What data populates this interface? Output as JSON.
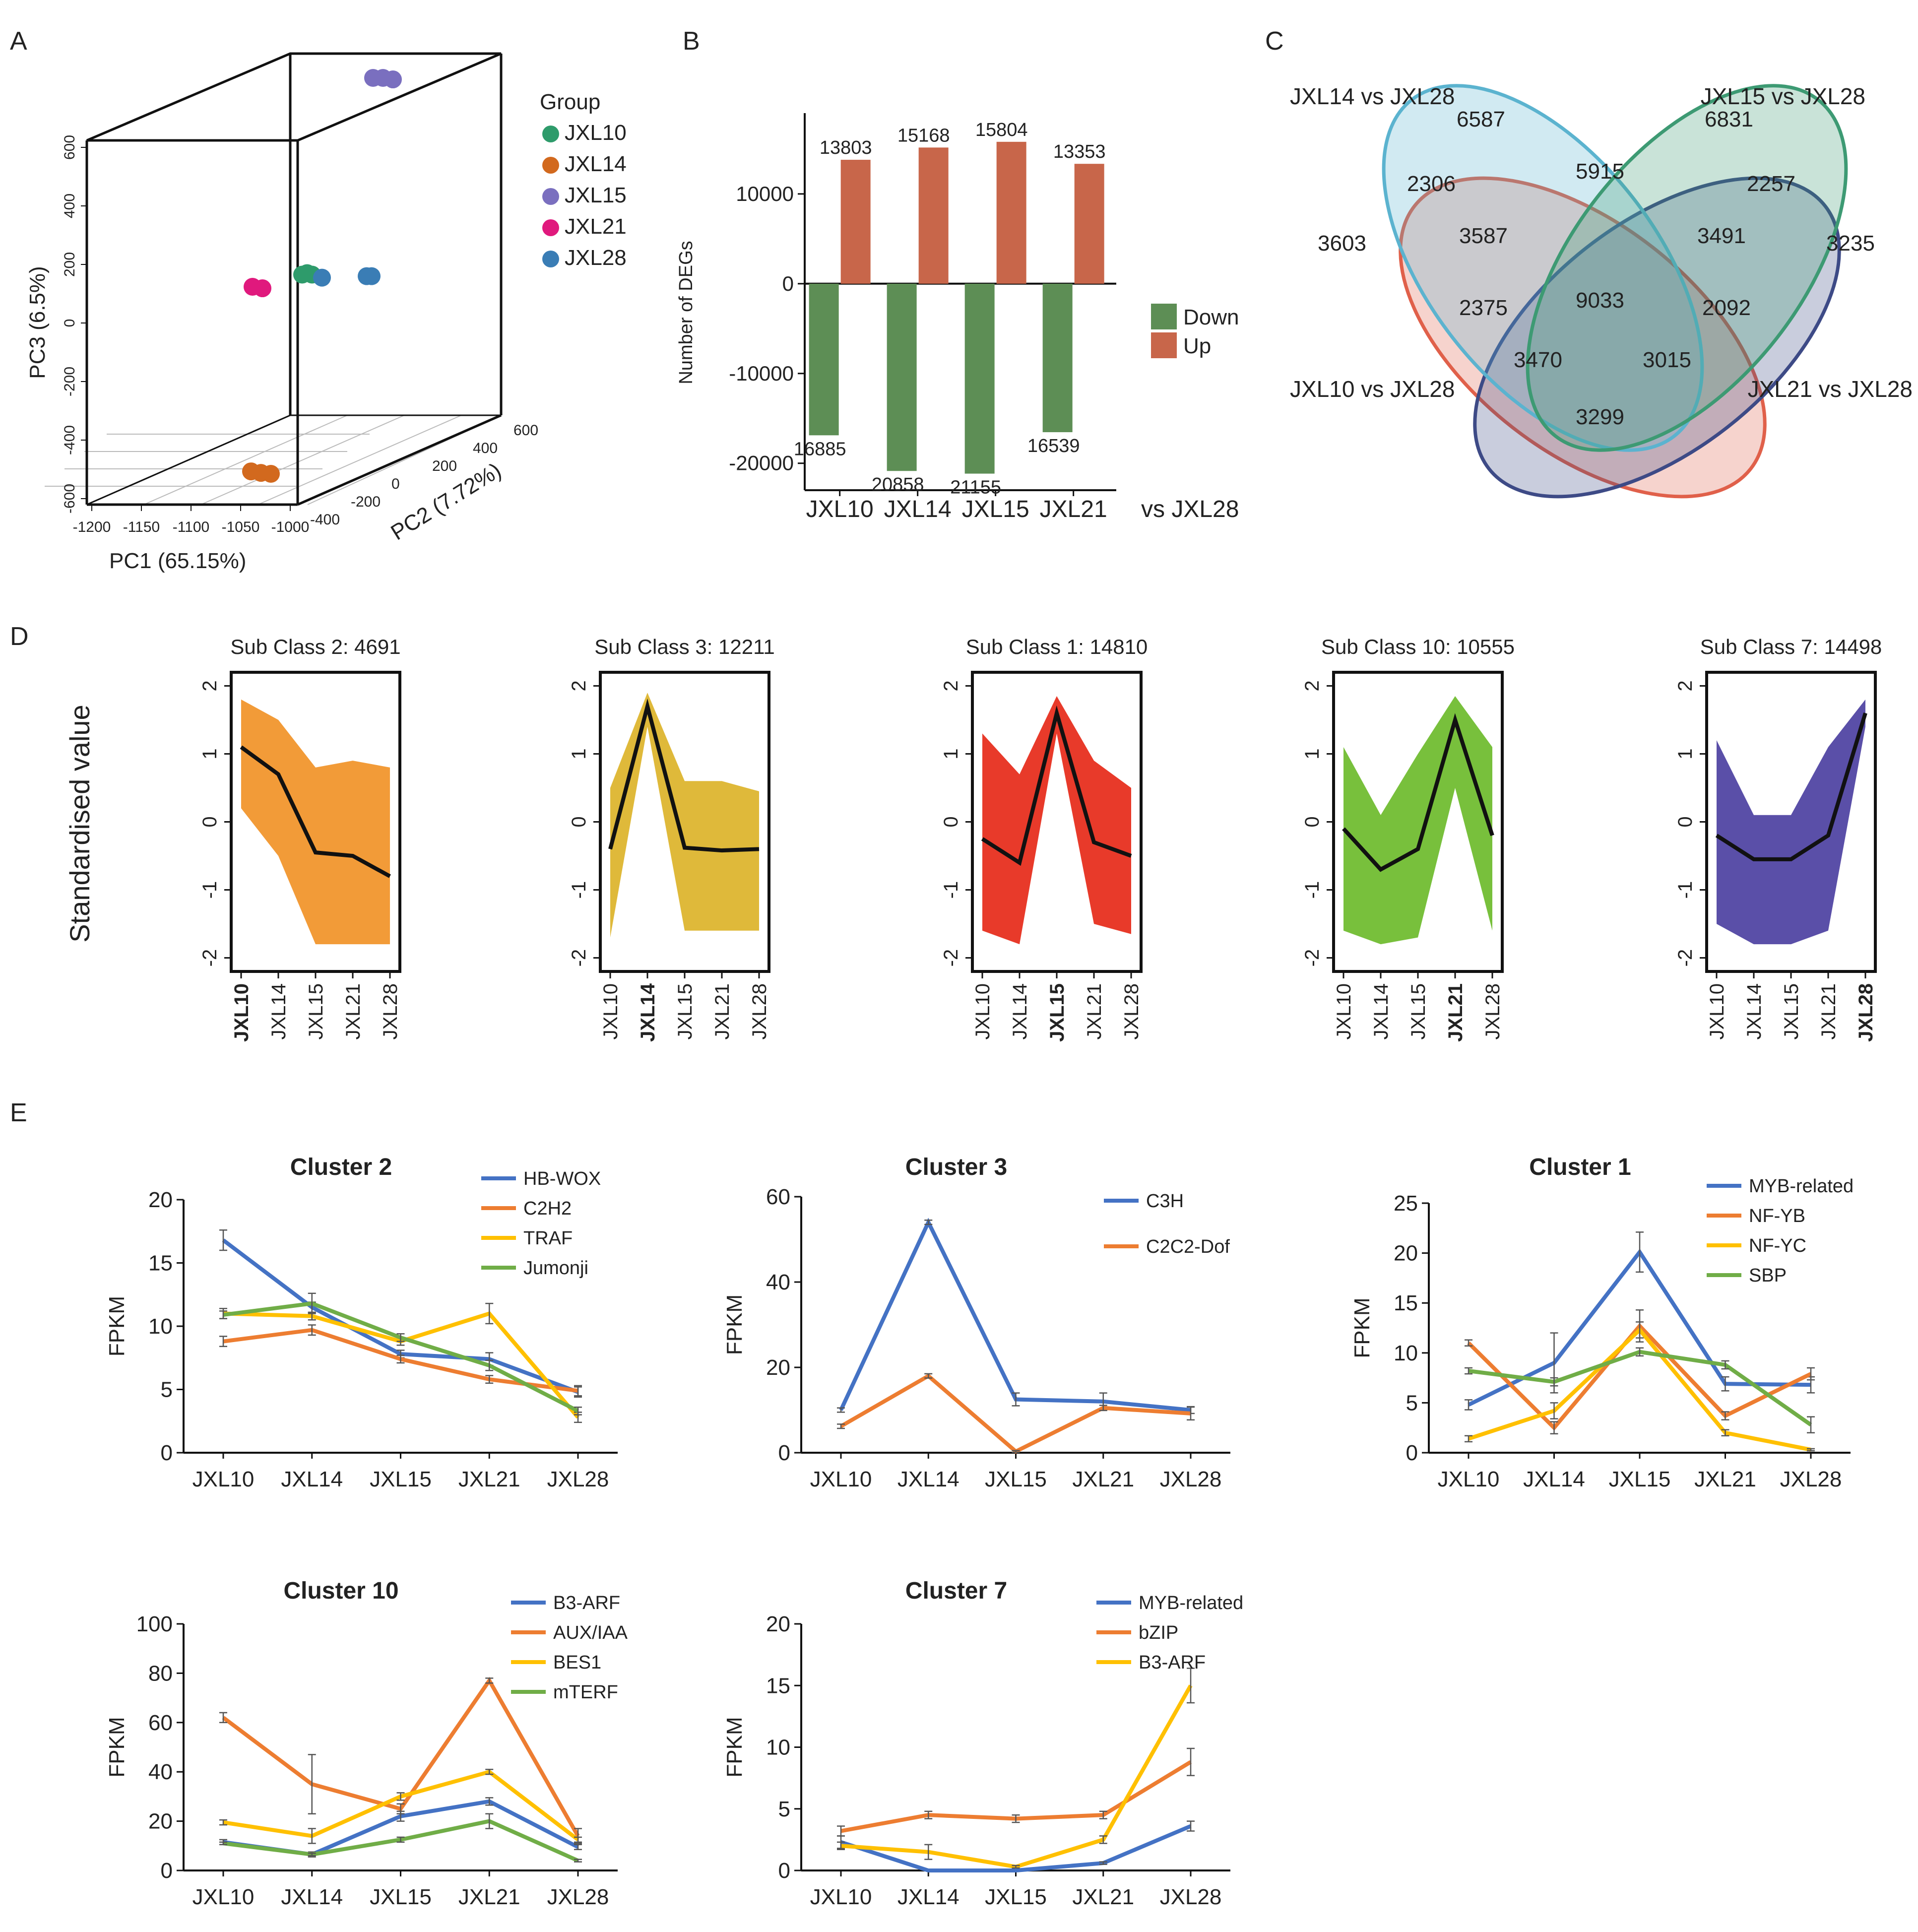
{
  "panel_labels": [
    "A",
    "B",
    "C",
    "D",
    "E"
  ],
  "chart_data": [
    {
      "panel": "A",
      "type": "scatter",
      "title": "",
      "xlabel": "PC1 (65.15%)",
      "ylabel": "PC2 (7.72%)",
      "zlabel": "PC3 (6.5%)",
      "x_ticks": [
        "-1200",
        "-1150",
        "-1100",
        "-1050",
        "-1000"
      ],
      "y_ticks": [
        "-400",
        "-200",
        "0",
        "200",
        "400",
        "600"
      ],
      "z_ticks": [
        "-600",
        "-400",
        "-200",
        "0",
        "200",
        "400",
        "600"
      ],
      "legend_title": "Group",
      "legend_position": "right",
      "series": [
        {
          "name": "JXL10",
          "color": "#2e9b6b",
          "points": [
            [
              -1070,
              0,
              40
            ],
            [
              -1065,
              0,
              45
            ],
            [
              -1060,
              0,
              40
            ]
          ]
        },
        {
          "name": "JXL14",
          "color": "#d2691e",
          "points": [
            [
              -1060,
              -300,
              -520
            ],
            [
              -1050,
              -300,
              -525
            ],
            [
              -1040,
              -300,
              -528
            ]
          ]
        },
        {
          "name": "JXL15",
          "color": "#7a6fbf",
          "points": [
            [
              -1060,
              300,
              600
            ],
            [
              -1050,
              300,
              600
            ],
            [
              -1040,
              300,
              595
            ]
          ]
        },
        {
          "name": "JXL21",
          "color": "#e0197d",
          "points": [
            [
              -1120,
              0,
              0
            ],
            [
              -1110,
              0,
              -5
            ]
          ]
        },
        {
          "name": "JXL28",
          "color": "#3a7db5",
          "points": [
            [
              -1050,
              0,
              30
            ],
            [
              -1005,
              0,
              35
            ],
            [
              -1000,
              0,
              35
            ]
          ]
        }
      ]
    },
    {
      "panel": "B",
      "type": "bar",
      "title": "",
      "xlabel": "",
      "ylabel": "Number of DEGs",
      "x_suffix": "vs JXL28",
      "categories": [
        "JXL10",
        "JXL14",
        "JXL15",
        "JXL21"
      ],
      "ylim": [
        -23000,
        19000
      ],
      "y_ticks": [
        -20000,
        -10000,
        0,
        10000
      ],
      "legend_position": "right",
      "series": [
        {
          "name": "Down",
          "color": "#5d8e55",
          "values": [
            -16885,
            -20858,
            -21155,
            -16539
          ],
          "labels": [
            "16885",
            "20858",
            "21155",
            "16539"
          ]
        },
        {
          "name": "Up",
          "color": "#c8664a",
          "values": [
            13803,
            15168,
            15804,
            13353
          ],
          "labels": [
            "13803",
            "15168",
            "15804",
            "13353"
          ]
        }
      ]
    },
    {
      "panel": "C",
      "type": "venn",
      "sets": [
        "JXL14 vs JXL28",
        "JXL15 vs JXL28",
        "JXL10 vs JXL28",
        "JXL21 vs JXL28"
      ],
      "set_colors": [
        "#5bb3cf",
        "#3d9a73",
        "#e0604a",
        "#3d4a86"
      ],
      "regions": [
        "6587",
        "6831",
        "5915",
        "2306",
        "2257",
        "3603",
        "3587",
        "3491",
        "3235",
        "9033",
        "2375",
        "2092",
        "3470",
        "3015",
        "3299"
      ]
    },
    {
      "panel": "D",
      "type": "area",
      "ylabel": "Standardised value",
      "x": [
        "JXL10",
        "JXL14",
        "JXL15",
        "JXL21",
        "JXL28"
      ],
      "ylim": [
        -2.2,
        2.2
      ],
      "y_ticks": [
        "-2",
        "-1",
        "0",
        "1",
        "2"
      ],
      "subplots": [
        {
          "title": "Sub Class 2: 4691",
          "color": "#f29b38",
          "highlight": 0,
          "mean": [
            1.1,
            0.7,
            -0.45,
            -0.5,
            -0.8
          ],
          "upper": [
            1.8,
            1.5,
            0.8,
            0.9,
            0.8
          ],
          "lower": [
            0.2,
            -0.5,
            -1.8,
            -1.8,
            -1.8
          ]
        },
        {
          "title": "Sub Class 3: 12211",
          "color": "#dfb93a",
          "highlight": 1,
          "mean": [
            -0.4,
            1.7,
            -0.38,
            -0.42,
            -0.4
          ],
          "upper": [
            0.5,
            1.9,
            0.6,
            0.6,
            0.45
          ],
          "lower": [
            -1.7,
            1.4,
            -1.6,
            -1.6,
            -1.6
          ]
        },
        {
          "title": "Sub Class 1: 14810",
          "color": "#e83a2a",
          "highlight": 2,
          "mean": [
            -0.25,
            -0.6,
            1.6,
            -0.3,
            -0.5
          ],
          "upper": [
            1.3,
            0.7,
            1.85,
            0.9,
            0.5
          ],
          "lower": [
            -1.6,
            -1.8,
            1.3,
            -1.5,
            -1.65
          ]
        },
        {
          "title": "Sub Class 10: 10555",
          "color": "#78c03c",
          "highlight": 3,
          "mean": [
            -0.1,
            -0.7,
            -0.4,
            1.5,
            -0.2
          ],
          "upper": [
            1.1,
            0.1,
            1.0,
            1.85,
            1.1
          ],
          "lower": [
            -1.6,
            -1.8,
            -1.7,
            0.5,
            -1.6
          ]
        },
        {
          "title": "Sub Class 7: 14498",
          "color": "#5a4fa8",
          "highlight": 4,
          "mean": [
            -0.2,
            -0.55,
            -0.55,
            -0.2,
            1.6
          ],
          "upper": [
            1.2,
            0.1,
            0.1,
            1.1,
            1.8
          ],
          "lower": [
            -1.5,
            -1.8,
            -1.8,
            -1.6,
            1.4
          ]
        }
      ]
    },
    {
      "panel": "E",
      "type": "line",
      "x": [
        "JXL10",
        "JXL14",
        "JXL15",
        "JXL21",
        "JXL28"
      ],
      "ylabel": "FPKM",
      "subplots": [
        {
          "title": "Cluster 2",
          "ylim": [
            0,
            20
          ],
          "y_ticks": [
            0,
            5,
            10,
            15,
            20
          ],
          "series": [
            {
              "name": "HB-WOX",
              "color": "#4472c4",
              "values": [
                16.8,
                11.5,
                7.8,
                7.4,
                4.8
              ],
              "errors": [
                0.8,
                0.4,
                0.3,
                0.5,
                0.4
              ]
            },
            {
              "name": "C2H2",
              "color": "#ed7d31",
              "values": [
                8.8,
                9.7,
                7.4,
                5.8,
                4.9
              ],
              "errors": [
                0.4,
                0.4,
                0.3,
                0.3,
                0.4
              ]
            },
            {
              "name": "TRAF",
              "color": "#ffc000",
              "values": [
                11.0,
                10.8,
                8.8,
                11.0,
                2.8
              ],
              "errors": [
                0.4,
                0.3,
                0.3,
                0.8,
                0.4
              ]
            },
            {
              "name": "Jumonji",
              "color": "#70ad47",
              "values": [
                10.9,
                11.8,
                9.1,
                6.9,
                3.3
              ],
              "errors": [
                0.3,
                0.8,
                0.3,
                0.4,
                0.3
              ]
            }
          ]
        },
        {
          "title": "Cluster 3",
          "ylim": [
            0,
            60
          ],
          "y_ticks": [
            0,
            20,
            40,
            60
          ],
          "series": [
            {
              "name": "C3H",
              "color": "#4472c4",
              "values": [
                10.0,
                54.0,
                12.5,
                12.0,
                10.0
              ],
              "errors": [
                0.5,
                0.5,
                1.5,
                2.0,
                0.8
              ]
            },
            {
              "name": "C2C2-Dof",
              "color": "#ed7d31",
              "values": [
                6.2,
                18.0,
                0.3,
                10.5,
                9.2
              ],
              "errors": [
                0.5,
                0.5,
                0.2,
                0.6,
                1.5
              ]
            }
          ]
        },
        {
          "title": "Cluster 1",
          "ylim": [
            0,
            25
          ],
          "y_ticks": [
            0,
            5,
            10,
            15,
            20,
            25
          ],
          "series": [
            {
              "name": "MYB-related",
              "color": "#4472c4",
              "values": [
                4.8,
                9.0,
                20.1,
                6.9,
                6.8
              ],
              "errors": [
                0.5,
                3.0,
                2.0,
                0.7,
                0.8
              ]
            },
            {
              "name": "NF-YB",
              "color": "#ed7d31",
              "values": [
                11.0,
                2.5,
                12.7,
                3.7,
                7.9
              ],
              "errors": [
                0.3,
                0.6,
                1.6,
                0.4,
                0.6
              ]
            },
            {
              "name": "NF-YC",
              "color": "#ffc000",
              "values": [
                1.4,
                4.2,
                12.3,
                2.0,
                0.3
              ],
              "errors": [
                0.3,
                0.8,
                0.8,
                0.3,
                0.1
              ]
            },
            {
              "name": "SBP",
              "color": "#70ad47",
              "values": [
                8.2,
                7.1,
                10.1,
                8.8,
                2.8
              ],
              "errors": [
                0.3,
                0.4,
                0.4,
                0.4,
                0.8
              ]
            }
          ]
        },
        {
          "title": "Cluster 10",
          "ylim": [
            0,
            100
          ],
          "y_ticks": [
            0,
            20,
            40,
            60,
            80,
            100
          ],
          "series": [
            {
              "name": "B3-ARF",
              "color": "#4472c4",
              "values": [
                11.5,
                6.5,
                22.0,
                28.0,
                9.5
              ],
              "errors": [
                1.0,
                1.0,
                2.0,
                1.5,
                1.0
              ]
            },
            {
              "name": "AUX/IAA",
              "color": "#ed7d31",
              "values": [
                62.0,
                35.0,
                25.0,
                77.0,
                14.0
              ],
              "errors": [
                2.0,
                12.0,
                2.0,
                1.0,
                3.0
              ]
            },
            {
              "name": "BES1",
              "color": "#ffc000",
              "values": [
                19.5,
                14.0,
                30.0,
                40.0,
                12.5
              ],
              "errors": [
                1.0,
                3.0,
                1.5,
                1.0,
                1.0
              ]
            },
            {
              "name": "mTERF",
              "color": "#70ad47",
              "values": [
                11.0,
                6.5,
                12.5,
                20.0,
                4.0
              ],
              "errors": [
                0.5,
                0.5,
                1.0,
                3.0,
                0.5
              ]
            }
          ]
        },
        {
          "title": "Cluster 7",
          "ylim": [
            0,
            20
          ],
          "y_ticks": [
            0,
            5,
            10,
            15,
            20
          ],
          "series": [
            {
              "name": "MYB-related",
              "color": "#4472c4",
              "values": [
                2.3,
                0.0,
                0.0,
                0.6,
                3.6
              ],
              "errors": [
                0.5,
                0.0,
                0.0,
                0.1,
                0.4
              ]
            },
            {
              "name": "bZIP",
              "color": "#ed7d31",
              "values": [
                3.2,
                4.5,
                4.2,
                4.5,
                8.8
              ],
              "errors": [
                0.4,
                0.3,
                0.3,
                0.3,
                1.1
              ]
            },
            {
              "name": "B3-ARF",
              "color": "#ffc000",
              "values": [
                2.0,
                1.5,
                0.3,
                2.5,
                15.0
              ],
              "errors": [
                0.3,
                0.6,
                0.1,
                0.3,
                1.4
              ]
            }
          ]
        }
      ]
    }
  ]
}
